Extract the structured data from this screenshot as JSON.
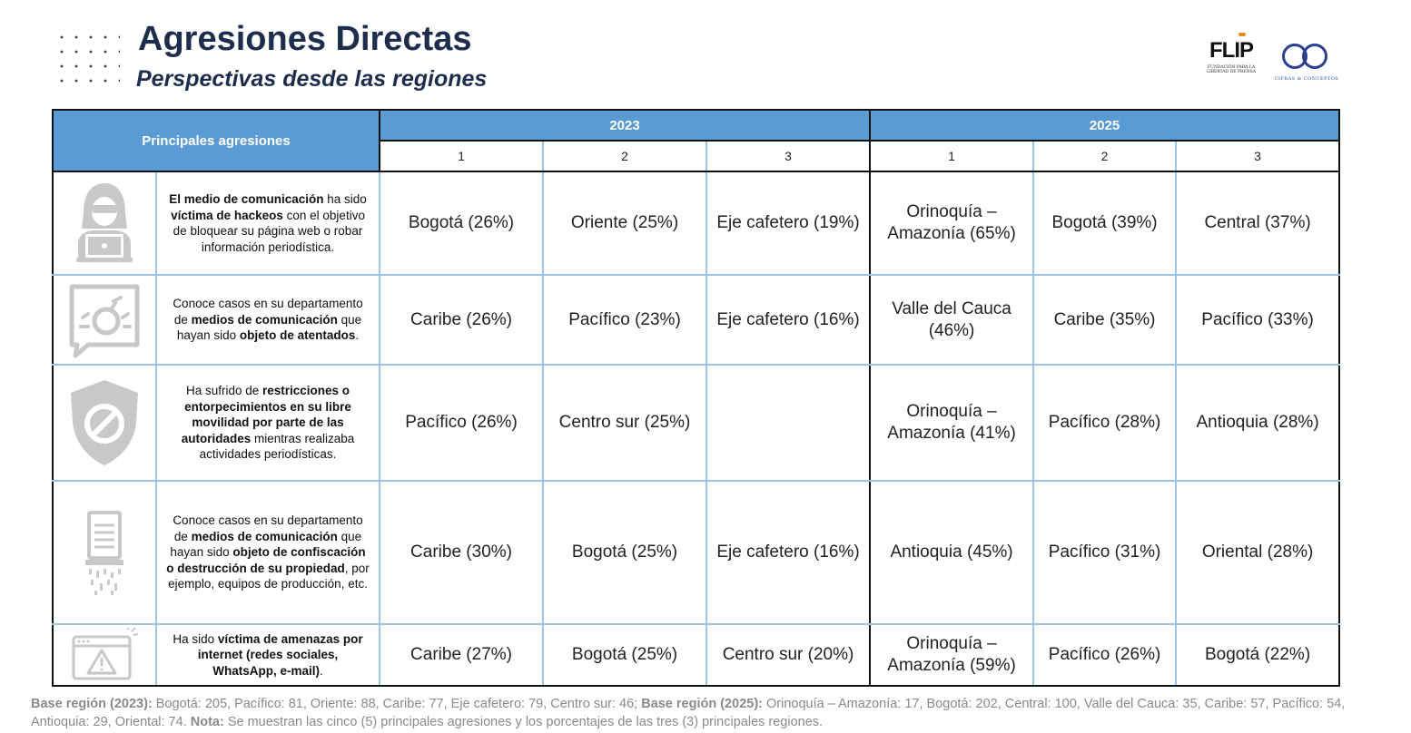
{
  "header": {
    "title": "Agresiones Directas",
    "subtitle": "Perspectivas desde las regiones"
  },
  "logos": {
    "flip_text": "FLIP",
    "flip_small": "FUNDACIÓN PARA LA LIBERTAD DE PRENSA",
    "cc_small": "CIFRAS & CONCEPTOS"
  },
  "table": {
    "corner_header": "Principales agresiones",
    "years": [
      "2023",
      "2025"
    ],
    "ranks": [
      "1",
      "2",
      "3",
      "1",
      "2",
      "3"
    ],
    "rows": [
      {
        "icon": "hacker-laptop-icon",
        "desc": [
          {
            "t": "El medio de comunicación",
            "b": true
          },
          {
            "t": " ha sido ",
            "b": false
          },
          {
            "t": "víctima de hackeos",
            "b": true
          },
          {
            "t": " con el objetivo de bloquear su página web o robar información periodística.",
            "b": false
          }
        ],
        "values": [
          "Bogotá (26%)",
          "Oriente (25%)",
          "Eje cafetero (19%)",
          "Orinoquía – Amazonía (65%)",
          "Bogotá (39%)",
          "Central (37%)"
        ]
      },
      {
        "icon": "bomb-speech-icon",
        "desc": [
          {
            "t": "Conoce casos en su departamento de ",
            "b": false
          },
          {
            "t": "medios de comunicación",
            "b": true
          },
          {
            "t": " que hayan sido ",
            "b": false
          },
          {
            "t": "objeto de atentados",
            "b": true
          },
          {
            "t": ".",
            "b": false
          }
        ],
        "values": [
          "Caribe (26%)",
          "Pacífico (23%)",
          "Eje cafetero (16%)",
          "Valle del Cauca (46%)",
          "Caribe (35%)",
          "Pacífico (33%)"
        ]
      },
      {
        "icon": "shield-prohibited-icon",
        "desc": [
          {
            "t": "Ha sufrido de ",
            "b": false
          },
          {
            "t": "restricciones o entorpecimientos en su libre movilidad por parte de las autoridades",
            "b": true
          },
          {
            "t": " mientras realizaba actividades periodísticas.",
            "b": false
          }
        ],
        "values": [
          "Pacífico (26%)",
          "Centro sur (25%)",
          "",
          "Orinoquía – Amazonía (41%)",
          "Pacífico (28%)",
          "Antioquia (28%)"
        ]
      },
      {
        "icon": "shredder-document-icon",
        "desc": [
          {
            "t": "Conoce casos en su departamento de ",
            "b": false
          },
          {
            "t": "medios de comunicación",
            "b": true
          },
          {
            "t": " que hayan sido ",
            "b": false
          },
          {
            "t": "objeto de confiscación o destrucción de su propiedad",
            "b": true
          },
          {
            "t": ", por ejemplo, equipos de producción, etc.",
            "b": false
          }
        ],
        "values": [
          "Caribe (30%)",
          "Bogotá (25%)",
          "Eje cafetero (16%)",
          "Antioquia (45%)",
          "Pacífico (31%)",
          "Oriental (28%)"
        ]
      },
      {
        "icon": "browser-warning-icon",
        "desc": [
          {
            "t": "Ha sido ",
            "b": false
          },
          {
            "t": "víctima de amenazas por internet (redes sociales, WhatsApp, e-mail)",
            "b": true
          },
          {
            "t": ".",
            "b": false
          }
        ],
        "values": [
          "Caribe (27%)",
          "Bogotá (25%)",
          "Centro sur (20%)",
          "Orinoquía – Amazonía (59%)",
          "Pacífico (26%)",
          "Bogotá (22%)"
        ]
      }
    ]
  },
  "footnote": [
    {
      "t": "Base región (2023):",
      "b": true
    },
    {
      "t": " Bogotá: 205, Pacífico: 81, Oriente: 88, Caribe: 77, Eje cafetero: 79, Centro sur: 46; ",
      "b": false
    },
    {
      "t": "Base región (2025):",
      "b": true
    },
    {
      "t": " Orinoquía – Amazonía: 17, Bogotá: 202, Central: 100, Valle del Cauca: 35, Caribe: 57, Pacífico: 54, Antioquia: 29, Oriental: 74. ",
      "b": false
    },
    {
      "t": "Nota:",
      "b": true
    },
    {
      "t": " Se muestran las cinco (5) principales agresiones y los porcentajes de las tres (3) principales regiones.",
      "b": false
    }
  ]
}
